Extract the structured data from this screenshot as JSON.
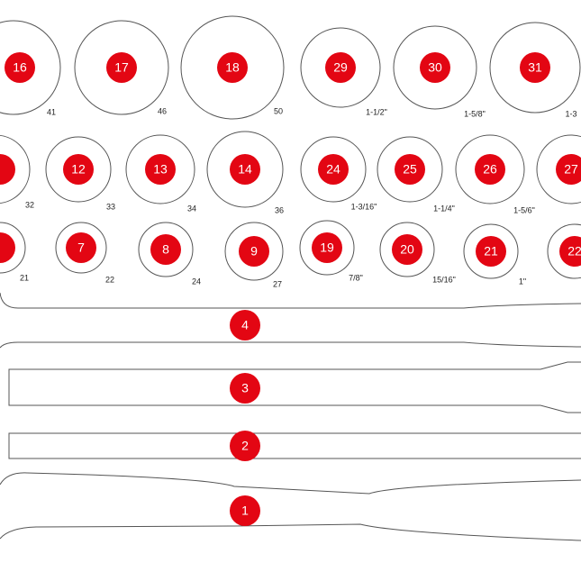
{
  "row1": [
    {
      "label": "16",
      "size": "41"
    },
    {
      "label": "17",
      "size": "46"
    },
    {
      "label": "18",
      "size": "50"
    },
    {
      "label": "29",
      "size": "1-1/2\""
    },
    {
      "label": "30",
      "size": "1-5/8\""
    },
    {
      "label": "31",
      "size": "1-3"
    }
  ],
  "row2": [
    {
      "size": "32"
    },
    {
      "label": "12",
      "size": "33"
    },
    {
      "label": "13",
      "size": "34"
    },
    {
      "label": "14",
      "size": "36"
    },
    {
      "label": "24",
      "size": "1-3/16\""
    },
    {
      "label": "25",
      "size": "1-1/4\""
    },
    {
      "label": "26",
      "size": "1-5/6\""
    },
    {
      "label": "27"
    }
  ],
  "row3": [
    {
      "size": "21"
    },
    {
      "label": "7",
      "size": "22"
    },
    {
      "label": "8",
      "size": "24"
    },
    {
      "label": "9",
      "size": "27"
    },
    {
      "label": "19",
      "size": "7/8\""
    },
    {
      "label": "20",
      "size": "15/16\""
    },
    {
      "label": "21",
      "size": "1\""
    },
    {
      "label": "22"
    }
  ],
  "tools": [
    "4",
    "3",
    "2",
    "1"
  ]
}
